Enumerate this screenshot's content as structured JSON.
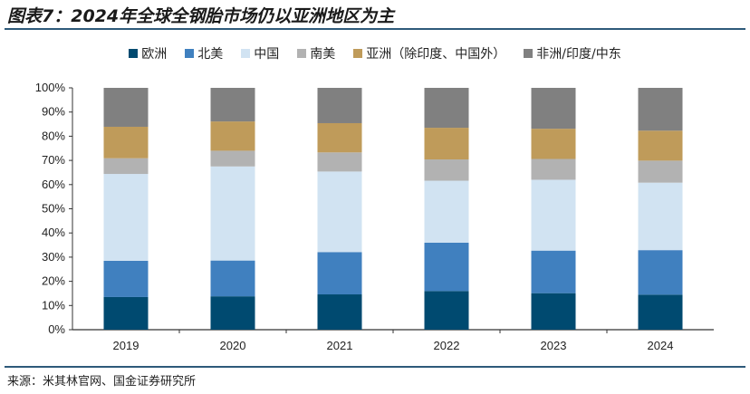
{
  "title": "图表7：2024年全球全钢胎市场仍以亚洲地区为主",
  "source": "来源：米其林官网、国金证券研究所",
  "chart_data": {
    "type": "bar",
    "stacked": true,
    "categories": [
      "2019",
      "2020",
      "2021",
      "2022",
      "2023",
      "2024"
    ],
    "ylim": [
      0,
      100
    ],
    "yticks": [
      "0%",
      "10%",
      "20%",
      "30%",
      "40%",
      "50%",
      "60%",
      "70%",
      "80%",
      "90%",
      "100%"
    ],
    "legend_position": "top",
    "grid": false,
    "series": [
      {
        "name": "欧洲",
        "color": "#004a70",
        "values": [
          13.5,
          13.8,
          14.6,
          16.0,
          15.1,
          14.5
        ]
      },
      {
        "name": "北美",
        "color": "#4080bf",
        "values": [
          15.0,
          14.8,
          17.5,
          20.0,
          17.6,
          18.4
        ]
      },
      {
        "name": "中国",
        "color": "#d1e3f2",
        "values": [
          35.9,
          38.9,
          33.3,
          25.6,
          29.3,
          27.9
        ]
      },
      {
        "name": "南美",
        "color": "#b2b2b2",
        "values": [
          6.5,
          6.5,
          7.9,
          8.8,
          8.6,
          9.1
        ]
      },
      {
        "name": "亚洲（除印度、中国外）",
        "color": "#bf9b5a",
        "values": [
          13.0,
          12.1,
          12.1,
          13.1,
          12.5,
          12.4
        ]
      },
      {
        "name": "非洲/印度/中东",
        "color": "#808080",
        "values": [
          16.1,
          13.9,
          14.6,
          16.5,
          16.9,
          17.7
        ]
      }
    ]
  }
}
